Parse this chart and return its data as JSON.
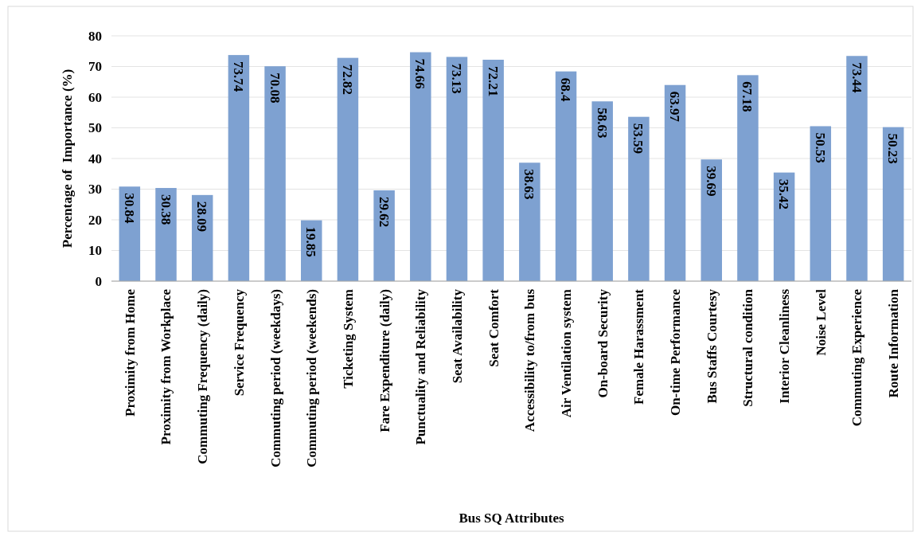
{
  "chart_data": {
    "type": "bar",
    "xlabel": "Bus SQ Attributes",
    "ylabel": "Percentage of  Importance (%)",
    "categories": [
      "Proximity from Home",
      "Proximity from Workplace",
      "Commuting Frequency (daily)",
      "Service Frequency",
      "Commuting period (weekdays)",
      "Commuting period (weekends)",
      "Ticketing System",
      "Fare Expenditure (daily)",
      "Punctuality and Reliability",
      "Seat Availability",
      "Seat Comfort",
      "Accessibility to/from bus",
      "Air Ventilation system",
      "On-board Security",
      "Female Harassment",
      "On-time Performance",
      "Bus Staffs Courtesy",
      "Structural condition",
      "Interior Cleanliness",
      "Noise Level",
      "Commuting Experience",
      "Route Information"
    ],
    "values": [
      30.84,
      30.38,
      28.09,
      73.74,
      70.08,
      19.85,
      72.82,
      29.62,
      74.66,
      73.13,
      72.21,
      38.63,
      68.4,
      58.63,
      53.59,
      63.97,
      39.69,
      67.18,
      35.42,
      50.53,
      73.44,
      50.23
    ],
    "color": "#7ea1d1",
    "ylim": [
      0,
      80
    ],
    "yticks": [
      0,
      10,
      20,
      30,
      40,
      50,
      60,
      70,
      80
    ],
    "grid": "y",
    "data_labels": true
  }
}
